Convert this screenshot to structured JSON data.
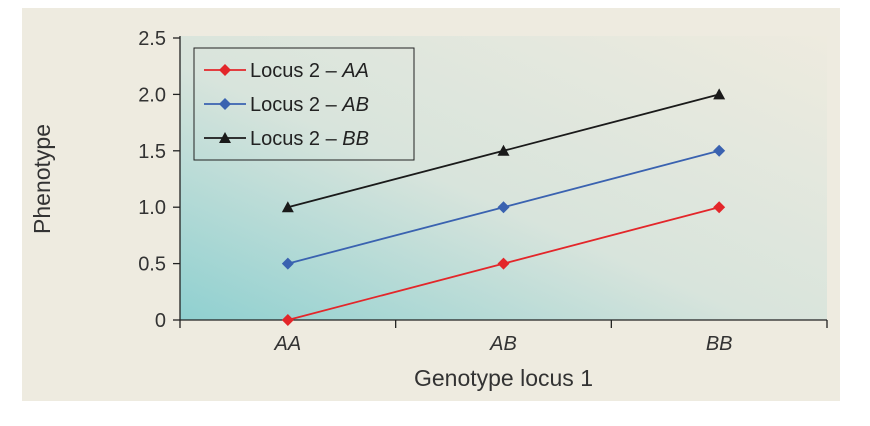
{
  "chart_data": {
    "type": "line",
    "title": "",
    "xlabel": "Genotype locus 1",
    "ylabel": "Phenotype",
    "categories": [
      "AA",
      "AB",
      "BB"
    ],
    "ylim": [
      0,
      2.5
    ],
    "yticks": [
      0,
      0.5,
      1.0,
      1.5,
      2.0,
      2.5
    ],
    "ytick_labels": [
      "0",
      "0.5",
      "1.0",
      "1.5",
      "2.0",
      "2.5"
    ],
    "grid": false,
    "legend_position": "top-left",
    "series": [
      {
        "name": "Locus 2 – AA",
        "prefix": "Locus 2 – ",
        "genotype": "AA",
        "values": [
          0,
          0.5,
          1.0
        ],
        "color": "#e3262a",
        "marker": "diamond"
      },
      {
        "name": "Locus 2 – AB",
        "prefix": "Locus 2 – ",
        "genotype": "AB",
        "values": [
          0.5,
          1.0,
          1.5
        ],
        "color": "#3a62b0",
        "marker": "diamond"
      },
      {
        "name": "Locus 2 – BB",
        "prefix": "Locus 2 – ",
        "genotype": "BB",
        "values": [
          1.0,
          1.5,
          2.0
        ],
        "color": "#1a1a1a",
        "marker": "triangle"
      }
    ]
  }
}
